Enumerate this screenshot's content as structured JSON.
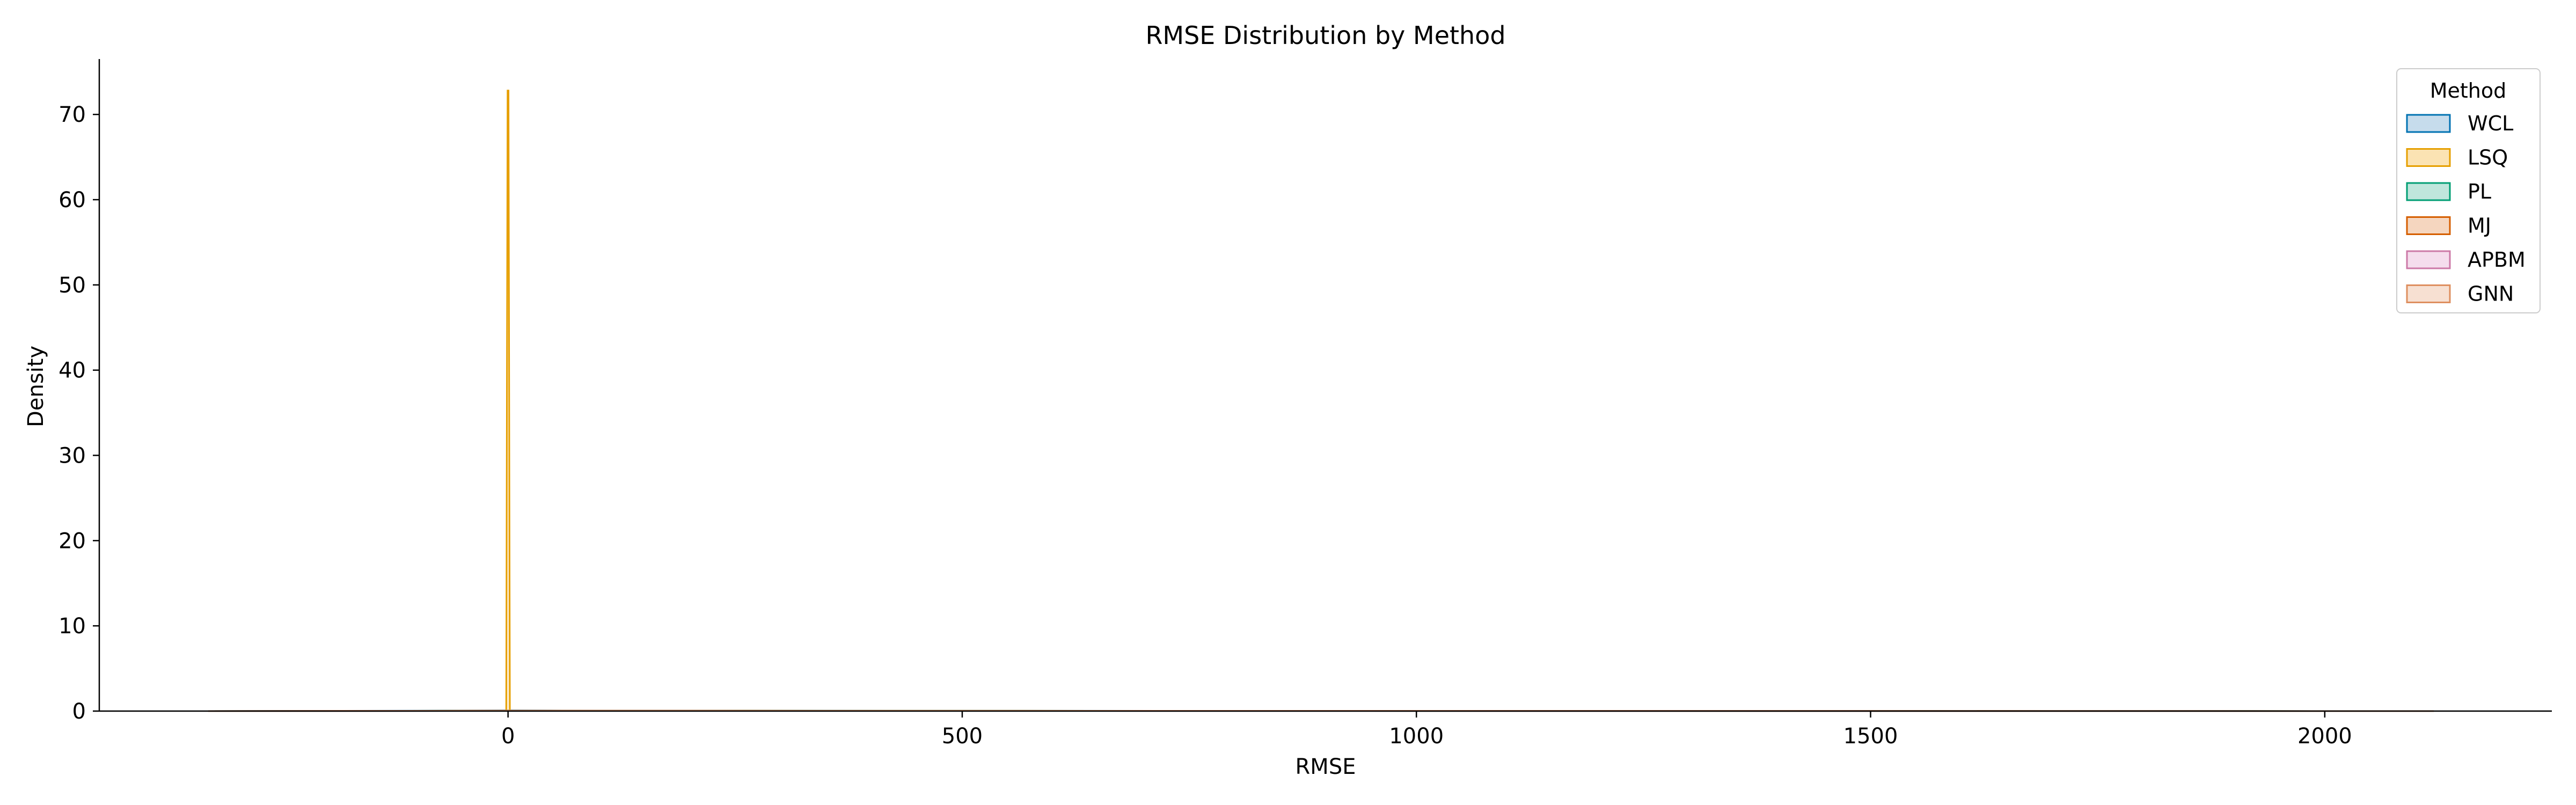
{
  "chart_data": {
    "type": "area",
    "title": "RMSE Distribution by Method",
    "xlabel": "RMSE",
    "ylabel": "Density",
    "xlim": [
      -450,
      2250
    ],
    "ylim": [
      0,
      76.5
    ],
    "x_ticks": [
      0,
      500,
      1000,
      1500,
      2000
    ],
    "y_ticks": [
      0,
      10,
      20,
      30,
      40,
      50,
      60,
      70
    ],
    "grid": false,
    "legend": {
      "title": "Method",
      "position": "top-right"
    },
    "series": [
      {
        "name": "WCL",
        "color": "#0072B2",
        "fill": "#c6dcec",
        "points": [
          [
            -330,
            0
          ],
          [
            -100,
            0.05
          ],
          [
            0,
            0.08
          ],
          [
            100,
            0.05
          ],
          [
            2120,
            0
          ]
        ]
      },
      {
        "name": "LSQ",
        "color": "#E69F00",
        "fill": "#fbe3b3",
        "points": [
          [
            -2,
            0
          ],
          [
            -0.5,
            72.8
          ],
          [
            0.5,
            72.8
          ],
          [
            2,
            0
          ]
        ]
      },
      {
        "name": "PL",
        "color": "#009E73",
        "fill": "#bfe6dc",
        "points": [
          [
            -330,
            0
          ],
          [
            0,
            0.05
          ],
          [
            2120,
            0
          ]
        ]
      },
      {
        "name": "MJ",
        "color": "#D55E00",
        "fill": "#f5d6bf",
        "points": [
          [
            -330,
            0
          ],
          [
            0,
            0.05
          ],
          [
            2120,
            0
          ]
        ]
      },
      {
        "name": "APBM",
        "color": "#CC79A7",
        "fill": "#f5dded",
        "points": [
          [
            -330,
            0
          ],
          [
            0,
            0.04
          ],
          [
            2120,
            0
          ]
        ]
      },
      {
        "name": "GNN",
        "color": "#DE8F5F",
        "fill": "#f7e0d2",
        "points": [
          [
            -330,
            0
          ],
          [
            0,
            0.04
          ],
          [
            2120,
            0
          ]
        ]
      }
    ]
  }
}
